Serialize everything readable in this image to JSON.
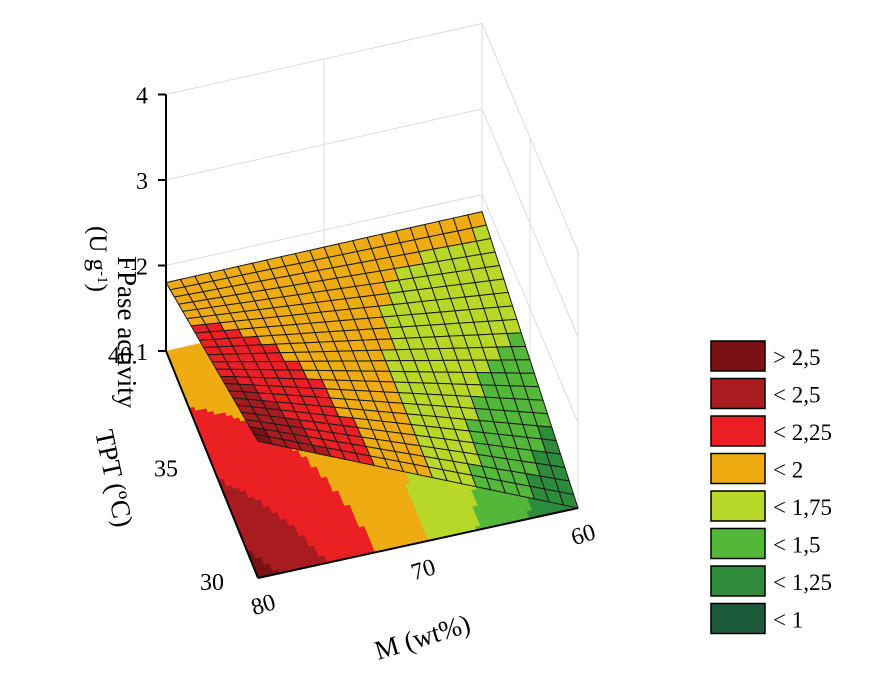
{
  "chart_data": {
    "type": "surface-3d",
    "xlabel": "M (wt%)",
    "ylabel": "TPT (ºC)",
    "zlabel": "FPase activity",
    "zunit": "(U g",
    "zunit_sup": "-1",
    "zunit_close": ")",
    "x_ticks": [
      "60",
      "70",
      "80"
    ],
    "y_ticks": [
      "30",
      "35",
      "40"
    ],
    "z_ticks": [
      "1",
      "2",
      "3",
      "4"
    ],
    "xlim": [
      60,
      80
    ],
    "ylim": [
      30,
      40
    ],
    "zlim": [
      1,
      4
    ],
    "grid": true,
    "legend_position": "right",
    "model": {
      "description_points": [
        {
          "M": 80,
          "TPT": 30,
          "value": 2.6
        },
        {
          "M": 80,
          "TPT": 40,
          "value": 1.8
        },
        {
          "M": 60,
          "TPT": 30,
          "value": 1.0
        },
        {
          "M": 60,
          "TPT": 40,
          "value": 1.8
        }
      ]
    },
    "legend": [
      {
        "label": "> 2,5",
        "color": "#7b1015"
      },
      {
        "label": "< 2,5",
        "color": "#a81c20"
      },
      {
        "label": "< 2,25",
        "color": "#ea2024"
      },
      {
        "label": "< 2",
        "color": "#efac12"
      },
      {
        "label": "< 1,75",
        "color": "#b8d829"
      },
      {
        "label": "< 1,5",
        "color": "#53b73a"
      },
      {
        "label": "< 1,25",
        "color": "#2c8c3c"
      },
      {
        "label": "< 1",
        "color": "#1c5a3a"
      }
    ]
  }
}
